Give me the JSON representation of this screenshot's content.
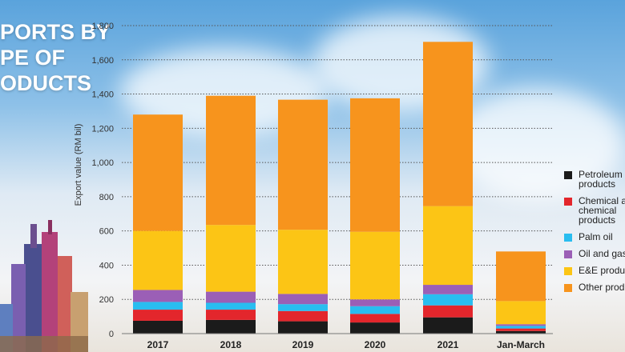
{
  "title_lines": [
    "PORTS BY",
    "PE OF",
    "ODUCTS"
  ],
  "chart_data": {
    "type": "bar",
    "stacked": true,
    "ylabel": "Export value (RM bil)",
    "ylim": [
      0,
      1800
    ],
    "yticks": [
      0,
      200,
      400,
      600,
      800,
      1000,
      1200,
      1400,
      1600,
      1800
    ],
    "ytick_labels": [
      "0",
      "200",
      "400",
      "600",
      "800",
      "1,000",
      "1,200",
      "1,400",
      "1,600",
      "1,800"
    ],
    "categories": [
      "2017",
      "2018",
      "2019",
      "2020",
      "2021",
      "Jan-March"
    ],
    "grid": true,
    "legend_position": "right",
    "series": [
      {
        "key": "petroleum",
        "name": "Petroleum\nproducts",
        "color": "#1b1b1b",
        "values": [
          75,
          80,
          72,
          65,
          95,
          15
        ]
      },
      {
        "key": "chemical",
        "name": "Chemical a\nchemical\nproducts",
        "color": "#e3262c",
        "values": [
          65,
          60,
          60,
          50,
          70,
          15
        ]
      },
      {
        "key": "palm",
        "name": "Palm oil",
        "color": "#29bdf0",
        "values": [
          45,
          40,
          40,
          45,
          65,
          15
        ]
      },
      {
        "key": "oilgas",
        "name": "Oil and gas",
        "color": "#9b5fb6",
        "values": [
          70,
          65,
          60,
          40,
          55,
          10
        ]
      },
      {
        "key": "ee",
        "name": "E&E produc",
        "color": "#fcc515",
        "values": [
          345,
          390,
          375,
          395,
          460,
          135
        ]
      },
      {
        "key": "other",
        "name": "Other produ",
        "color": "#f7941d",
        "values": [
          680,
          755,
          760,
          780,
          960,
          290
        ]
      }
    ]
  }
}
